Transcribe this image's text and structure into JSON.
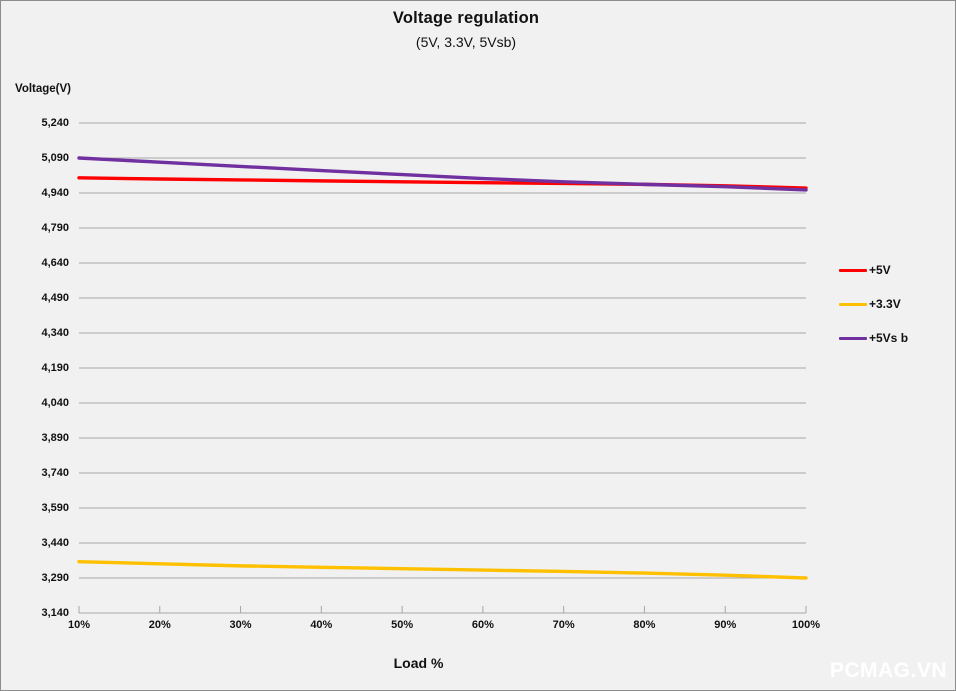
{
  "frame": {
    "background": "#f1f1f2",
    "border_color": "#8c8c8c"
  },
  "chart_data": {
    "type": "line",
    "title": "Voltage regulation",
    "subtitle": "(5V, 3.3V, 5Vsb)",
    "xlabel": "Load %",
    "ylabel": "Voltage(V)",
    "categories": [
      "10%",
      "20%",
      "30%",
      "40%",
      "50%",
      "60%",
      "70%",
      "80%",
      "90%",
      "100%"
    ],
    "ylim": [
      3140,
      5240
    ],
    "ytick_step": 150,
    "ytick_labels": [
      "5,240",
      "5,090",
      "4,940",
      "4,790",
      "4,640",
      "4,490",
      "4,340",
      "4,190",
      "4,040",
      "3,890",
      "3,740",
      "3,590",
      "3,440",
      "3,290",
      "3,140"
    ],
    "grid": true,
    "gridline_color": "#a6a6a6",
    "legend_position": "right",
    "series": [
      {
        "name": "+5V",
        "color": "#ff0000",
        "values": [
          5005,
          5000,
          4996,
          4992,
          4988,
          4984,
          4981,
          4977,
          4971,
          4961
        ]
      },
      {
        "name": "+3.3V",
        "color": "#ffc000",
        "values": [
          3360,
          3351,
          3342,
          3336,
          3330,
          3324,
          3318,
          3311,
          3302,
          3290
        ]
      },
      {
        "name": "+5Vs b",
        "color": "#7030a0",
        "values": [
          5090,
          5072,
          5054,
          5036,
          5019,
          5002,
          4988,
          4977,
          4967,
          4953
        ]
      }
    ]
  },
  "watermark": "PCMAG.VN"
}
